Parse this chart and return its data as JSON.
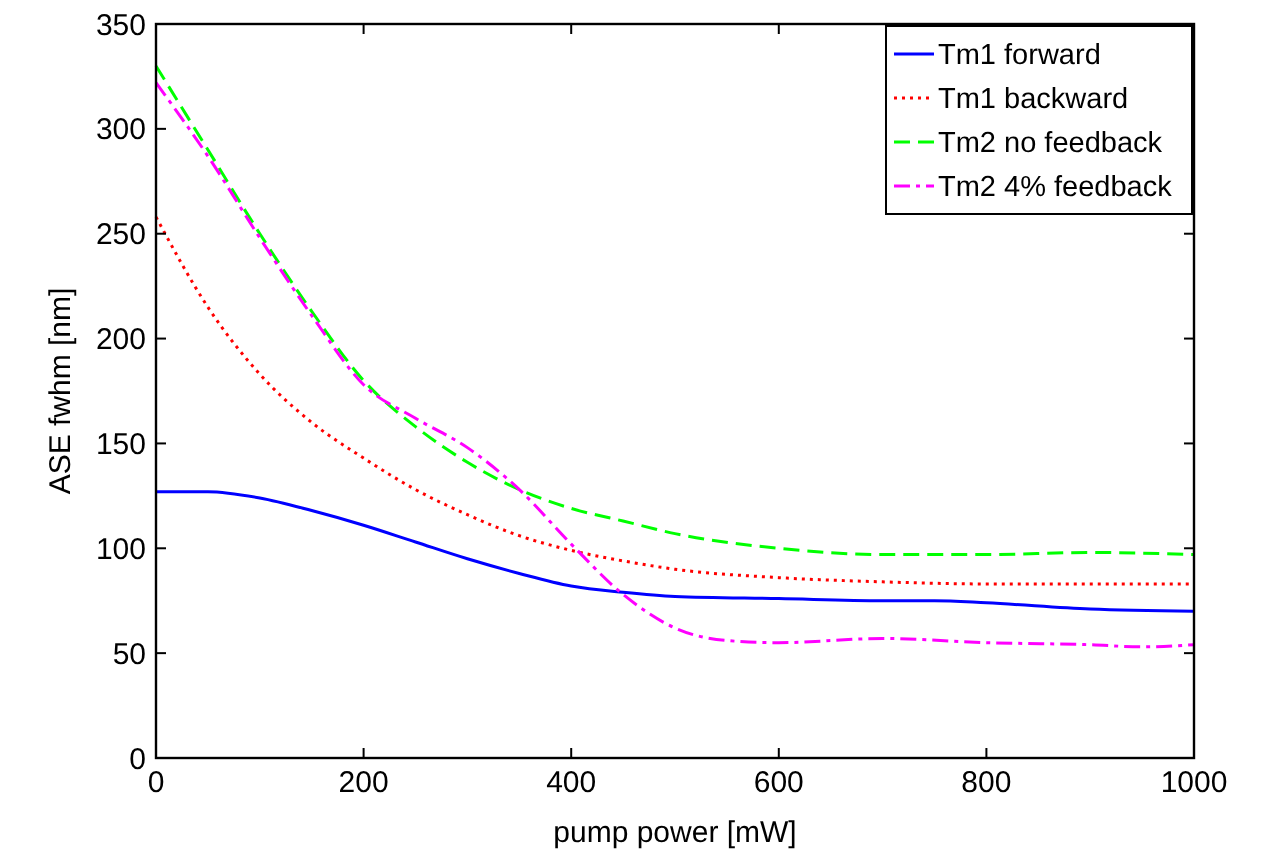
{
  "chart_data": {
    "type": "line",
    "xlabel": "pump power [mW]",
    "ylabel": "ASE fwhm [nm]",
    "xlim": [
      0,
      1000
    ],
    "ylim": [
      0,
      350
    ],
    "xticks": [
      0,
      200,
      400,
      600,
      800,
      1000
    ],
    "yticks": [
      0,
      50,
      100,
      150,
      200,
      250,
      300,
      350
    ],
    "grid": false,
    "legend": "top right",
    "series": [
      {
        "name": "Tm1 forward",
        "color": "#0000ff",
        "line_style": "solid",
        "x": [
          0,
          50,
          100,
          150,
          200,
          250,
          300,
          350,
          400,
          450,
          500,
          600,
          700,
          750,
          800,
          900,
          1000
        ],
        "values": [
          127,
          127,
          124,
          118,
          111,
          103,
          95,
          88,
          82,
          79,
          77,
          76,
          75,
          75,
          74,
          71,
          70
        ]
      },
      {
        "name": "Tm1 backward",
        "color": "#ff0000",
        "line_style": "dotted",
        "x": [
          0,
          50,
          100,
          150,
          200,
          250,
          300,
          350,
          400,
          450,
          500,
          600,
          700,
          800,
          1000
        ],
        "values": [
          258,
          215,
          183,
          160,
          143,
          128,
          116,
          106,
          99,
          94,
          90,
          86,
          84,
          83,
          83
        ]
      },
      {
        "name": "Tm2 no feedback",
        "color": "#00ff00",
        "line_style": "dashed",
        "x": [
          0,
          50,
          100,
          150,
          200,
          250,
          300,
          350,
          400,
          450,
          500,
          600,
          700,
          800,
          900,
          1000
        ],
        "values": [
          330,
          290,
          250,
          213,
          180,
          158,
          141,
          128,
          119,
          113,
          107,
          100,
          97,
          97,
          98,
          97
        ]
      },
      {
        "name": "Tm2 4% feedback",
        "color": "#ff00ff",
        "line_style": "dashdot",
        "x": [
          0,
          50,
          100,
          150,
          200,
          250,
          300,
          350,
          400,
          450,
          500,
          550,
          600,
          700,
          800,
          900,
          950,
          1000
        ],
        "values": [
          322,
          287,
          248,
          211,
          178,
          162,
          148,
          128,
          102,
          78,
          62,
          56,
          55,
          57,
          55,
          54,
          53,
          54
        ]
      }
    ]
  }
}
